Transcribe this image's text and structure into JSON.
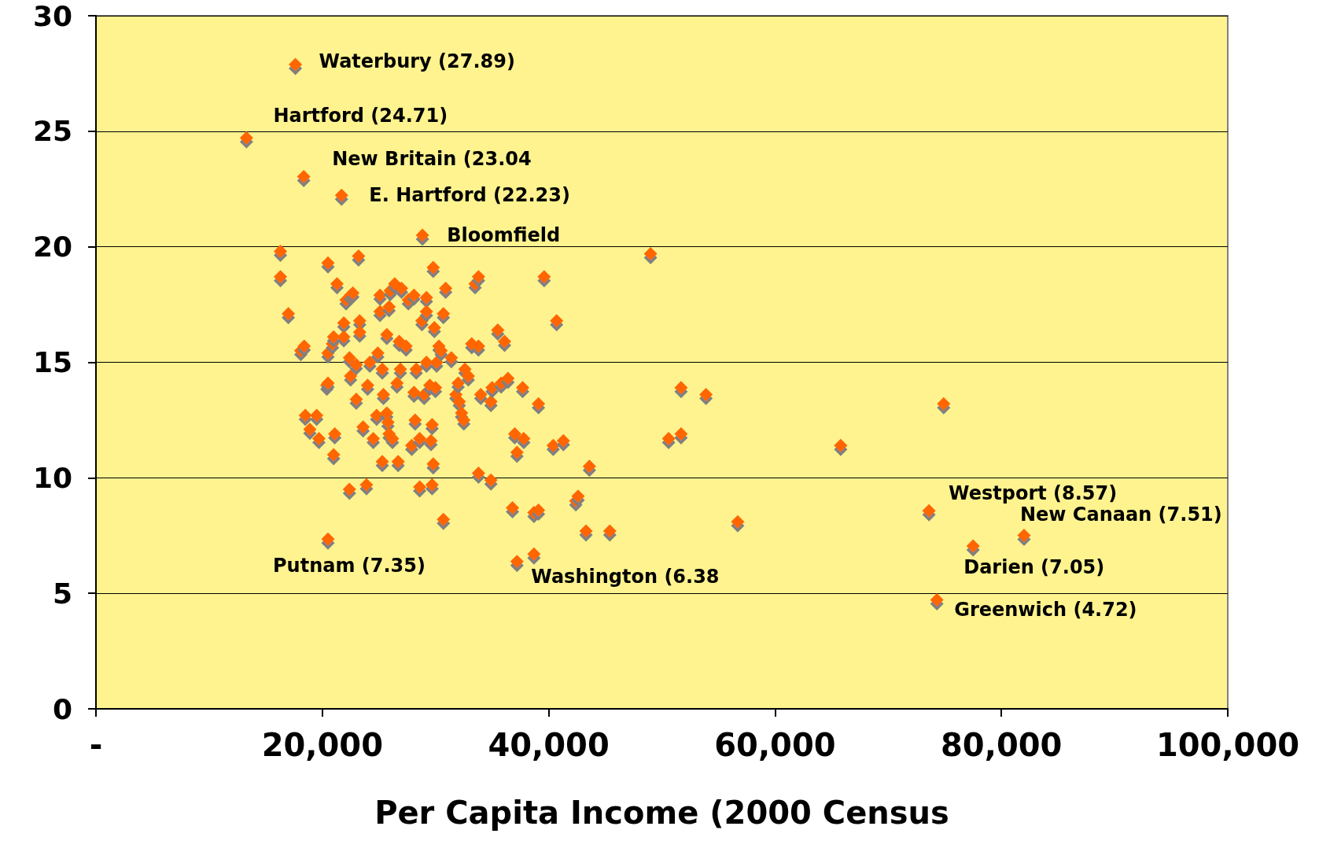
{
  "chart_data": {
    "type": "scatter",
    "xlabel": "Per Capita Income (2000 Census",
    "x": [
      17620,
      13300,
      18360,
      21700,
      28850,
      20500,
      37200,
      73600,
      82000,
      77500,
      74300,
      16300,
      16300,
      17000,
      49000,
      18100,
      18400,
      18500,
      18900,
      19500,
      19700,
      20400,
      20500,
      20500,
      20500,
      20900,
      21000,
      21100,
      21000,
      21300,
      21900,
      21900,
      22100,
      22500,
      22700,
      22400,
      22500,
      22400,
      23000,
      23200,
      23300,
      23300,
      23000,
      23600,
      23900,
      24000,
      24200,
      24500,
      24800,
      24900,
      25100,
      25100,
      25300,
      25300,
      25400,
      25700,
      25700,
      25800,
      25900,
      26200,
      25900,
      26000,
      26400,
      26600,
      26700,
      26800,
      26900,
      27000,
      27400,
      27600,
      27900,
      28100,
      28100,
      28300,
      28200,
      28600,
      28600,
      28800,
      29000,
      29200,
      29200,
      29200,
      29500,
      29600,
      29700,
      29700,
      29800,
      29800,
      29900,
      30000,
      30100,
      30300,
      30500,
      30700,
      30700,
      30900,
      31400,
      31800,
      32000,
      32100,
      32300,
      32500,
      32600,
      32900,
      33200,
      33500,
      33800,
      33800,
      33800,
      34000,
      34900,
      34900,
      35000,
      35500,
      36100,
      35800,
      36400,
      36800,
      37000,
      37200,
      37700,
      37800,
      38700,
      39100,
      38700,
      39100,
      39600,
      40400,
      40700,
      41300,
      42400,
      42600,
      43300,
      43600,
      45400,
      50600,
      51700,
      51700,
      53900,
      56700,
      65800,
      74900
    ],
    "values": [
      27.89,
      24.71,
      23.04,
      22.23,
      20.5,
      7.35,
      6.38,
      8.57,
      7.51,
      7.05,
      4.72,
      19.8,
      18.7,
      17.1,
      19.7,
      15.5,
      15.7,
      12.7,
      12.1,
      12.7,
      11.7,
      14.0,
      14.1,
      19.3,
      15.4,
      15.8,
      16.1,
      11.9,
      11.0,
      18.4,
      16.7,
      16.1,
      17.7,
      17.9,
      18.0,
      15.2,
      14.4,
      9.5,
      13.4,
      19.6,
      16.8,
      16.3,
      14.9,
      12.2,
      9.7,
      14.0,
      15.0,
      11.7,
      12.7,
      15.4,
      17.2,
      17.9,
      10.7,
      14.7,
      13.6,
      12.8,
      16.2,
      12.4,
      11.9,
      11.7,
      17.4,
      18.1,
      18.4,
      14.1,
      10.7,
      15.9,
      14.7,
      18.2,
      15.7,
      17.7,
      11.4,
      13.7,
      17.9,
      14.7,
      12.5,
      9.6,
      11.7,
      16.8,
      13.6,
      17.8,
      17.2,
      15.0,
      14.0,
      11.6,
      9.7,
      12.3,
      10.6,
      19.1,
      16.5,
      13.9,
      15.0,
      15.7,
      15.5,
      17.1,
      8.2,
      18.2,
      15.2,
      13.6,
      14.1,
      13.3,
      12.8,
      12.5,
      14.7,
      14.4,
      15.8,
      18.4,
      18.7,
      15.7,
      10.2,
      13.6,
      9.9,
      13.3,
      13.9,
      16.4,
      15.9,
      14.1,
      14.3,
      8.7,
      11.9,
      11.1,
      13.9,
      11.7,
      8.5,
      8.6,
      6.7,
      13.2,
      18.7,
      11.4,
      16.8,
      11.6,
      9.0,
      9.2,
      7.7,
      10.5,
      7.7,
      11.7,
      11.9,
      13.9,
      13.6,
      8.1,
      11.4,
      13.2
    ],
    "color": "#ff6600",
    "marker": "diamond",
    "xlim": [
      0,
      100000
    ],
    "xticks": [
      {
        "value": 0,
        "label": "-"
      },
      {
        "value": 20000,
        "label": "20,000"
      },
      {
        "value": 40000,
        "label": "40,000"
      },
      {
        "value": 60000,
        "label": "60,000"
      },
      {
        "value": 80000,
        "label": "80,000"
      },
      {
        "value": 100000,
        "label": "100,000"
      }
    ],
    "ylim": [
      0,
      30
    ],
    "yticks": [
      0,
      5,
      10,
      15,
      20,
      25,
      30
    ],
    "grid": "y",
    "annotations": [
      {
        "text": "Waterbury (27.89)",
        "x": 17620,
        "y": 27.89
      },
      {
        "text": "Hartford (24.71)",
        "x": 13300,
        "y": 24.71
      },
      {
        "text": "New Britain (23.04",
        "x": 18360,
        "y": 23.04
      },
      {
        "text": "E. Hartford (22.23)",
        "x": 21700,
        "y": 22.23
      },
      {
        "text": "Bloomfield",
        "x": 28850,
        "y": 20.5
      },
      {
        "text": "Putnam (7.35)",
        "x": 20500,
        "y": 7.35
      },
      {
        "text": "Washington (6.38",
        "x": 37200,
        "y": 6.38
      },
      {
        "text": "Westport (8.57)",
        "x": 73600,
        "y": 8.57
      },
      {
        "text": "New Canaan (7.51)",
        "x": 82000,
        "y": 7.51
      },
      {
        "text": "Darien (7.05)",
        "x": 77500,
        "y": 7.05
      },
      {
        "text": "Greenwich (4.72)",
        "x": 74300,
        "y": 4.72
      }
    ]
  }
}
